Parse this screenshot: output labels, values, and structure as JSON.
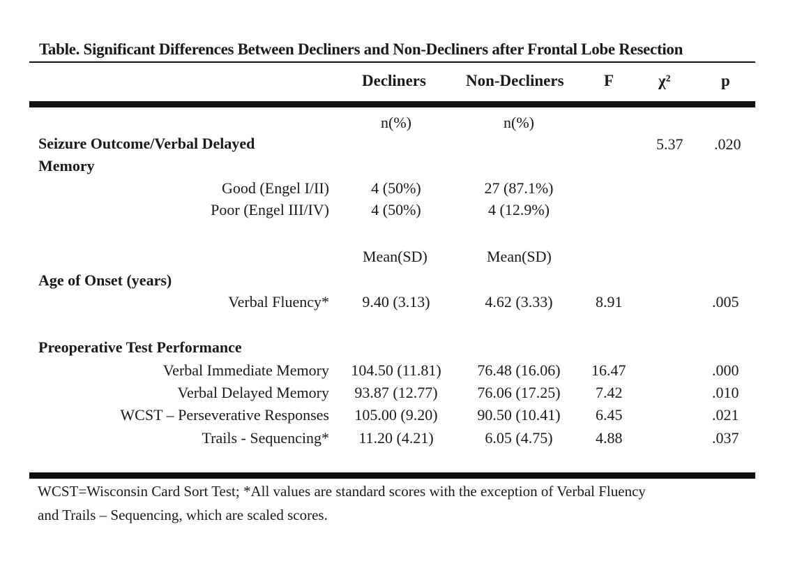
{
  "title": "Table. Significant Differences Between Decliners and Non-Decliners after Frontal Lobe Resection",
  "headers": {
    "decliners": "Decliners",
    "non_decliners": "Non-Decliners",
    "f": "F",
    "chi": "χ²",
    "p": "p"
  },
  "seizure": {
    "subhead_dec": "n(%)",
    "subhead_non": "n(%)",
    "label_line1": "Seizure Outcome/Verbal Delayed",
    "label_line2": "Memory",
    "chi": "5.37",
    "p": ".020",
    "rows": [
      {
        "label": "Good (Engel I/II)",
        "decliners": "4 (50%)",
        "non_decliners": "27 (87.1%)"
      },
      {
        "label": "Poor (Engel III/IV)",
        "decliners": "4 (50%)",
        "non_decliners": "4 (12.9%)"
      }
    ]
  },
  "age": {
    "subhead_dec": "Mean(SD)",
    "subhead_non": "Mean(SD)",
    "label": "Age of Onset (years)",
    "rows": [
      {
        "label": "Verbal Fluency*",
        "decliners": "9.40 (3.13)",
        "non_decliners": "4.62 (3.33)",
        "f": "8.91",
        "p": ".005"
      }
    ]
  },
  "preop": {
    "label": "Preoperative Test Performance",
    "rows": [
      {
        "label": "Verbal Immediate Memory",
        "decliners": "104.50 (11.81)",
        "non_decliners": "76.48 (16.06)",
        "f": "16.47",
        "p": ".000"
      },
      {
        "label": "Verbal Delayed Memory",
        "decliners": "93.87 (12.77)",
        "non_decliners": "76.06 (17.25)",
        "f": "7.42",
        "p": ".010"
      },
      {
        "label": "WCST – Perseverative Responses",
        "decliners": "105.00 (9.20)",
        "non_decliners": "90.50 (10.41)",
        "f": "6.45",
        "p": ".021"
      },
      {
        "label": "Trails - Sequencing*",
        "decliners": "11.20 (4.21)",
        "non_decliners": "6.05 (4.75)",
        "f": "4.88",
        "p": ".037"
      }
    ]
  },
  "footnote": {
    "line1": "WCST=Wisconsin Card Sort Test; *All values are standard scores with the exception of Verbal Fluency",
    "line2": "and Trails – Sequencing, which are scaled scores."
  }
}
